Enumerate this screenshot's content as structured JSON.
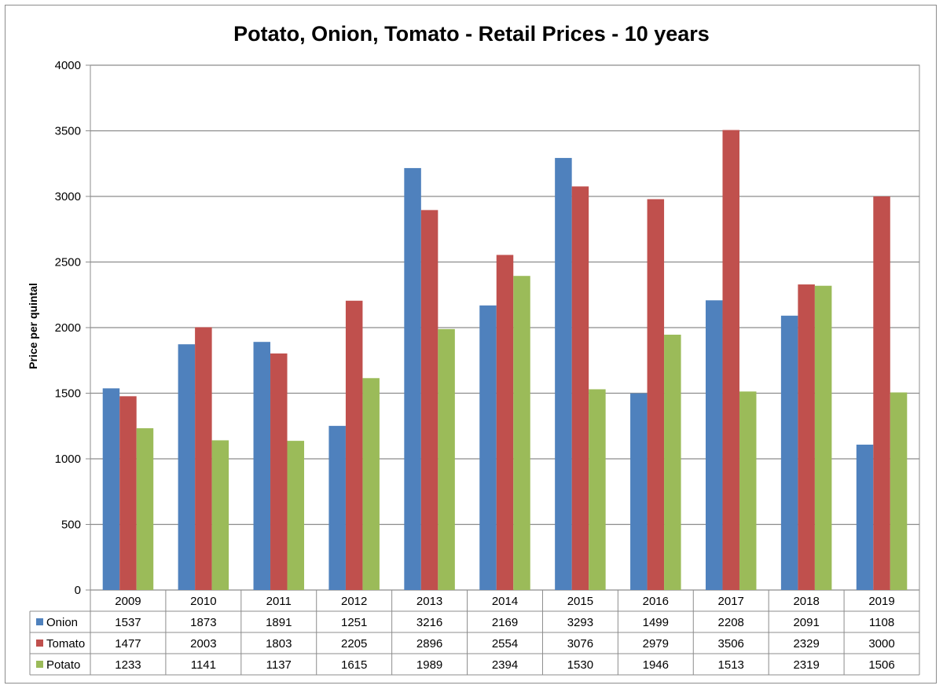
{
  "chart_data": {
    "type": "bar",
    "title": "Potato, Onion, Tomato - Retail Prices - 10 years",
    "xlabel": "",
    "ylabel": "Price per quintal",
    "ylim": [
      0,
      4000
    ],
    "yticks": [
      0,
      500,
      1000,
      1500,
      2000,
      2500,
      3000,
      3500,
      4000
    ],
    "grid": true,
    "legend": "data-table-left",
    "categories": [
      "2009",
      "2010",
      "2011",
      "2012",
      "2013",
      "2014",
      "2015",
      "2016",
      "2017",
      "2018",
      "2019"
    ],
    "series": [
      {
        "name": "Onion",
        "color": "#4F81BD",
        "values": [
          1537,
          1873,
          1891,
          1251,
          3216,
          2169,
          3293,
          1499,
          2208,
          2091,
          1108
        ]
      },
      {
        "name": "Tomato",
        "color": "#C0504D",
        "values": [
          1477,
          2003,
          1803,
          2205,
          2896,
          2554,
          3076,
          2979,
          3506,
          2329,
          3000
        ]
      },
      {
        "name": "Potato",
        "color": "#9BBB59",
        "values": [
          1233,
          1141,
          1137,
          1615,
          1989,
          2394,
          1530,
          1946,
          1513,
          2319,
          1506
        ]
      }
    ]
  }
}
